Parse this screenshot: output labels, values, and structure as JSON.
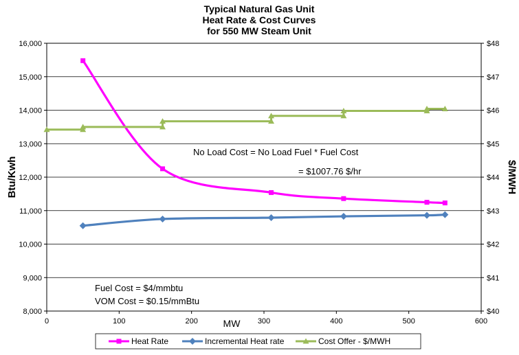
{
  "chart_data": {
    "type": "line",
    "title": [
      "Typical Natural Gas Unit",
      "Heat Rate & Cost Curves",
      "for 550 MW Steam Unit"
    ],
    "xlabel": "MW",
    "ylabel": "Btu/Kwh",
    "y2label": "$/MWH",
    "xlim": [
      0,
      600
    ],
    "ylim": [
      8000,
      16000
    ],
    "y2lim": [
      40,
      48
    ],
    "x_ticks": [
      "0",
      "100",
      "200",
      "300",
      "400",
      "500",
      "600"
    ],
    "y_ticks": [
      "8,000",
      "9,000",
      "10,000",
      "11,000",
      "12,000",
      "13,000",
      "14,000",
      "15,000",
      "16,000"
    ],
    "y2_ticks": [
      "$40",
      "$41",
      "$42",
      "$43",
      "$44",
      "$45",
      "$46",
      "$47",
      "$48"
    ],
    "grid": "horizontal",
    "legend_position": "bottom",
    "series": [
      {
        "name": "Heat Rate",
        "axis": "left",
        "color": "#ff00ff",
        "marker": "square",
        "smooth": true,
        "x": [
          50,
          160,
          310,
          410,
          525,
          550
        ],
        "y": [
          15480,
          12250,
          11540,
          11360,
          11250,
          11230
        ]
      },
      {
        "name": "Incremental Heat rate",
        "axis": "left",
        "color": "#4f81bd",
        "marker": "diamond",
        "smooth": true,
        "x": [
          50,
          160,
          310,
          410,
          525,
          550
        ],
        "y": [
          10550,
          10750,
          10790,
          10830,
          10860,
          10880
        ]
      },
      {
        "name": "Cost Offer - $/MWH",
        "axis": "right",
        "color": "#9bbb59",
        "marker": "triangle",
        "step": true,
        "x": [
          0,
          50,
          50,
          160,
          160,
          310,
          310,
          410,
          410,
          525,
          525,
          550
        ],
        "y": [
          45.42,
          45.42,
          45.5,
          45.5,
          45.67,
          45.67,
          45.83,
          45.83,
          45.98,
          45.98,
          46.04,
          46.04
        ]
      }
    ],
    "annotations": [
      "No Load Cost = No Load Fuel * Fuel Cost",
      "= $1007.76 $/hr",
      "Fuel Cost = $4/mmbtu",
      "VOM Cost = $0.15/mmBtu"
    ]
  }
}
